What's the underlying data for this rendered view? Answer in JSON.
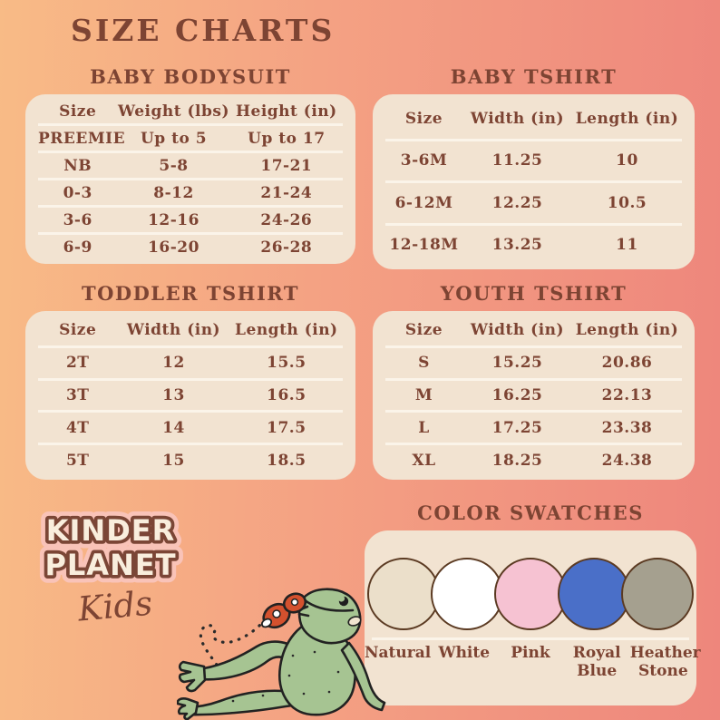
{
  "page": {
    "title": "SIZE CHARTS"
  },
  "tables": [
    {
      "title": "BABY BODYSUIT",
      "columns": [
        "Size",
        "Weight (lbs)",
        "Height (in)"
      ],
      "rows": [
        [
          "PREEMIE",
          "Up to 5",
          "Up to 17"
        ],
        [
          "NB",
          "5-8",
          "17-21"
        ],
        [
          "0-3",
          "8-12",
          "21-24"
        ],
        [
          "3-6",
          "12-16",
          "24-26"
        ],
        [
          "6-9",
          "16-20",
          "26-28"
        ]
      ]
    },
    {
      "title": "BABY TSHIRT",
      "columns": [
        "Size",
        "Width (in)",
        "Length (in)"
      ],
      "rows": [
        [
          "3-6M",
          "11.25",
          "10"
        ],
        [
          "6-12M",
          "12.25",
          "10.5"
        ],
        [
          "12-18M",
          "13.25",
          "11"
        ]
      ]
    },
    {
      "title": "TODDLER TSHIRT",
      "columns": [
        "Size",
        "Width (in)",
        "Length (in)"
      ],
      "rows": [
        [
          "2T",
          "12",
          "15.5"
        ],
        [
          "3T",
          "13",
          "16.5"
        ],
        [
          "4T",
          "14",
          "17.5"
        ],
        [
          "5T",
          "15",
          "18.5"
        ]
      ]
    },
    {
      "title": "YOUTH TSHIRT",
      "columns": [
        "Size",
        "Width (in)",
        "Length (in)"
      ],
      "rows": [
        [
          "S",
          "15.25",
          "20.86"
        ],
        [
          "M",
          "16.25",
          "22.13"
        ],
        [
          "L",
          "17.25",
          "23.38"
        ],
        [
          "XL",
          "18.25",
          "24.38"
        ]
      ]
    }
  ],
  "swatches": {
    "title": "COLOR SWATCHES",
    "items": [
      {
        "label": "Natural",
        "color": "#ebdfca"
      },
      {
        "label": "White",
        "color": "#ffffff"
      },
      {
        "label": "Pink",
        "color": "#f6c2d2"
      },
      {
        "label": "Royal Blue",
        "color": "#4a6fc8"
      },
      {
        "label": "Heather Stone",
        "color": "#a5a08f"
      }
    ]
  },
  "logo": {
    "line1": "KINDER",
    "line2": "PLANET",
    "line3": "Kids"
  },
  "illustrations": {
    "frog": "reclining-frog",
    "butterfly": "butterfly",
    "trail": "dotted-flight-trail"
  },
  "theme": {
    "bg_left": "#f8bb86",
    "bg_right": "#ee867c",
    "panel_cream": "#f2e3d1",
    "divider": "#fbf4e9",
    "text_brown": "#7d4433",
    "swatch_border": "#5b3a22",
    "logo_fill": "#f9eedd",
    "logo_outline": "#7b4636",
    "logo_glow": "#f9c3b8",
    "frog_green": "#a6c492",
    "butterfly_red": "#d4512e",
    "outline_black": "#222222"
  }
}
